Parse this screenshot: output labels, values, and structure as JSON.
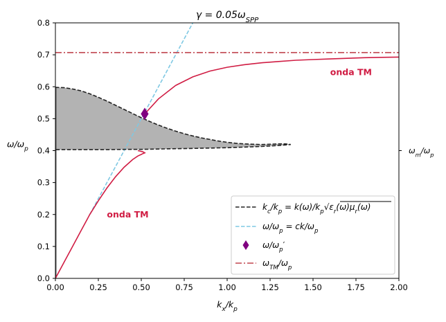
{
  "chart_data": {
    "type": "line",
    "title": "γ = 0.05ω_SPP",
    "xlabel": "k_x/k_p",
    "ylabel": "ω/ω_p",
    "right_label": "ω_m/ω_p",
    "right_tick_value": 0.4,
    "xlim": [
      0,
      2
    ],
    "ylim": [
      0,
      0.8
    ],
    "xticks": [
      "0.00",
      "0.25",
      "0.50",
      "0.75",
      "1.00",
      "1.25",
      "1.50",
      "1.75",
      "2.00"
    ],
    "yticks": [
      "0.0",
      "0.1",
      "0.2",
      "0.3",
      "0.4",
      "0.5",
      "0.6",
      "0.7",
      "0.8"
    ],
    "grid": false,
    "legend_position": "lower-right",
    "colors": {
      "shaded": "#b3b3b3",
      "boundary": "#222222",
      "light_line": "#7ec8e3",
      "tm_curve": "#d01c43",
      "marker": "#800080",
      "tm_asymptote": "#c0454e"
    },
    "series": [
      {
        "name": "k_c/k_p = k(ω)/k_p √(ε_r(ω)μ_r(ω))",
        "style": "dashed",
        "upper_branch": {
          "x": [
            0.0,
            0.05,
            0.1,
            0.15,
            0.2,
            0.25,
            0.3,
            0.35,
            0.4,
            0.45,
            0.5,
            0.55,
            0.6,
            0.65,
            0.7,
            0.75,
            0.8,
            0.85,
            0.9,
            0.95,
            1.0,
            1.05,
            1.1,
            1.15,
            1.2,
            1.25,
            1.3,
            1.34,
            1.37
          ],
          "y": [
            0.598,
            0.597,
            0.593,
            0.587,
            0.578,
            0.567,
            0.555,
            0.542,
            0.529,
            0.516,
            0.503,
            0.491,
            0.48,
            0.47,
            0.461,
            0.453,
            0.446,
            0.44,
            0.435,
            0.43,
            0.426,
            0.423,
            0.421,
            0.42,
            0.419,
            0.42,
            0.421,
            0.421,
            0.419
          ]
        },
        "lower_branch": {
          "x": [
            1.37,
            1.3,
            1.2,
            1.1,
            1.0,
            0.9,
            0.8,
            0.7,
            0.6,
            0.5,
            0.4,
            0.3,
            0.2,
            0.1,
            0.0
          ],
          "y": [
            0.419,
            0.416,
            0.413,
            0.411,
            0.409,
            0.408,
            0.407,
            0.406,
            0.405,
            0.404,
            0.404,
            0.403,
            0.403,
            0.403,
            0.403
          ]
        }
      },
      {
        "name": "ω/ω_p = ck/ω_p",
        "style": "dashed",
        "x": [
          0.2,
          0.8
        ],
        "y": [
          0.2,
          0.8
        ]
      },
      {
        "name": "ω/ω_p'",
        "style": "marker",
        "x": [
          0.52
        ],
        "y": [
          0.515
        ]
      },
      {
        "name": "ω_TM/ω_p",
        "style": "dashdot",
        "x": [
          0,
          2
        ],
        "y": [
          0.707,
          0.707
        ]
      },
      {
        "name": "onda TM (upper)",
        "style": "solid",
        "x": [
          0.52,
          0.6,
          0.7,
          0.8,
          0.9,
          1.0,
          1.1,
          1.2,
          1.3,
          1.4,
          1.5,
          1.6,
          1.7,
          1.8,
          1.9,
          2.0
        ],
        "y": [
          0.515,
          0.562,
          0.604,
          0.631,
          0.649,
          0.661,
          0.669,
          0.675,
          0.679,
          0.683,
          0.685,
          0.687,
          0.689,
          0.691,
          0.692,
          0.693
        ]
      },
      {
        "name": "onda TM (lower)",
        "style": "solid",
        "x": [
          0.0,
          0.05,
          0.1,
          0.15,
          0.2,
          0.25,
          0.3,
          0.35,
          0.4,
          0.45,
          0.48,
          0.5,
          0.51,
          0.52,
          0.51,
          0.49,
          0.48
        ],
        "y": [
          0.0,
          0.05,
          0.1,
          0.15,
          0.2,
          0.243,
          0.283,
          0.318,
          0.348,
          0.372,
          0.383,
          0.388,
          0.391,
          0.393,
          0.396,
          0.399,
          0.4
        ]
      }
    ],
    "annotations": [
      {
        "text": "onda TM",
        "x": 1.6,
        "y": 0.645
      },
      {
        "text": "onda TM",
        "x": 0.3,
        "y": 0.2
      }
    ]
  }
}
